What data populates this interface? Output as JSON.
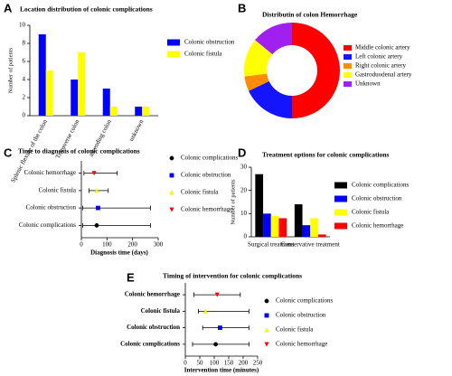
{
  "chart_data": [
    {
      "type": "bar",
      "panel": "A",
      "title": "Location distribution of colonic complications",
      "ylabel": "Number of patients",
      "categories": [
        "Splenic flexure of the colon",
        "Transverse colon",
        "ascending colon",
        "unknown"
      ],
      "series": [
        {
          "name": "Colonic obstruction",
          "color": "#0000ff",
          "values": [
            9,
            4,
            3,
            1
          ]
        },
        {
          "name": "Colonic fistula",
          "color": "#ffff00",
          "values": [
            5,
            7,
            1,
            1
          ]
        }
      ],
      "ylim": [
        0,
        10
      ],
      "yticks": [
        0,
        2,
        4,
        6,
        8,
        10
      ]
    },
    {
      "type": "pie",
      "panel": "B",
      "title": "Distributin of colon Hemorrhage",
      "categories": [
        "Middle colonic artery",
        "Left colonic artery",
        "Right colonic artery",
        "Gastroduodenal artery",
        "Unknown"
      ],
      "values": [
        50,
        18,
        5,
        13,
        14
      ],
      "colors": [
        "#ff0000",
        "#1414ff",
        "#ff8c00",
        "#ffff00",
        "#a020f0"
      ]
    },
    {
      "type": "errorbar",
      "panel": "C",
      "title": "Time to diagnosis of colonic complications",
      "xlabel": "Diagnosis time (days)",
      "categories": [
        "Colonic hemorrhage",
        "Colonic fistula",
        "Colonic obstruction",
        "Colonic complications"
      ],
      "series": [
        {
          "name": "Colonic complications",
          "color": "#000000",
          "marker": "circle",
          "value": 60,
          "low": 5,
          "high": 270
        },
        {
          "name": "Colonic obstruction",
          "color": "#0000ff",
          "marker": "square",
          "value": 65,
          "low": 5,
          "high": 270
        },
        {
          "name": "Colonic fistula",
          "color": "#ffff00",
          "marker": "triangle-up",
          "value": 60,
          "low": 30,
          "high": 105
        },
        {
          "name": "Colonic hemorrhage",
          "color": "#ff0000",
          "marker": "triangle-down",
          "value": 50,
          "low": 10,
          "high": 140
        }
      ],
      "xlim": [
        0,
        300
      ],
      "xticks": [
        0,
        100,
        200,
        300
      ]
    },
    {
      "type": "bar",
      "panel": "D",
      "title": "Treatment options for colonic complications",
      "ylabel": "Number of patients",
      "categories": [
        "Surgical treatment",
        "Conservative treatment"
      ],
      "series": [
        {
          "name": "Colonic complications",
          "color": "#000000",
          "values": [
            27,
            14
          ]
        },
        {
          "name": "Colonic obstruction",
          "color": "#0000ff",
          "values": [
            10,
            5
          ]
        },
        {
          "name": "Colonic fistula",
          "color": "#ffff00",
          "values": [
            9,
            8
          ]
        },
        {
          "name": "Colonic hemorrhage",
          "color": "#ff0000",
          "values": [
            8,
            1
          ]
        }
      ],
      "ylim": [
        0,
        30
      ],
      "yticks": [
        0,
        10,
        20,
        30
      ]
    },
    {
      "type": "errorbar",
      "panel": "E",
      "title": "Timing of intervention for colonic complications",
      "xlabel": "Intervention time (minutes)",
      "categories": [
        "Colonic hemorrhage",
        "Colonic fistula",
        "Colonic obstruction",
        "Colonic complications"
      ],
      "series": [
        {
          "name": "Colonic complications",
          "color": "#000000",
          "marker": "circle",
          "value": 105,
          "low": 25,
          "high": 220
        },
        {
          "name": "Colonic obstruction",
          "color": "#0000ff",
          "marker": "square",
          "value": 120,
          "low": 60,
          "high": 220
        },
        {
          "name": "Colonic fistula",
          "color": "#ffff00",
          "marker": "triangle-up",
          "value": 70,
          "low": 45,
          "high": 220
        },
        {
          "name": "Colonic hemorrhage",
          "color": "#ff0000",
          "marker": "triangle-down",
          "value": 110,
          "low": 30,
          "high": 190
        }
      ],
      "xlim": [
        0,
        250
      ],
      "xticks": [
        0,
        50,
        100,
        150,
        200,
        250
      ]
    }
  ]
}
